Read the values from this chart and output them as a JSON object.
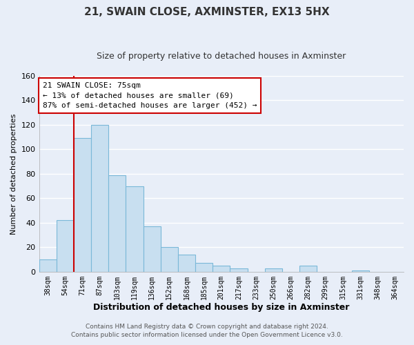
{
  "title": "21, SWAIN CLOSE, AXMINSTER, EX13 5HX",
  "subtitle": "Size of property relative to detached houses in Axminster",
  "xlabel": "Distribution of detached houses by size in Axminster",
  "ylabel": "Number of detached properties",
  "bins": [
    "38sqm",
    "54sqm",
    "71sqm",
    "87sqm",
    "103sqm",
    "119sqm",
    "136sqm",
    "152sqm",
    "168sqm",
    "185sqm",
    "201sqm",
    "217sqm",
    "233sqm",
    "250sqm",
    "266sqm",
    "282sqm",
    "299sqm",
    "315sqm",
    "331sqm",
    "348sqm",
    "364sqm"
  ],
  "values": [
    10,
    42,
    109,
    120,
    79,
    70,
    37,
    20,
    14,
    7,
    5,
    3,
    0,
    3,
    0,
    5,
    0,
    0,
    1,
    0,
    0
  ],
  "bar_color": "#c8dff0",
  "bar_edge_color": "#7ab8d8",
  "highlight_line_color": "#cc0000",
  "highlight_bin_index": 2,
  "ylim": [
    0,
    160
  ],
  "yticks": [
    0,
    20,
    40,
    60,
    80,
    100,
    120,
    140,
    160
  ],
  "annotation_title": "21 SWAIN CLOSE: 75sqm",
  "annotation_line1": "← 13% of detached houses are smaller (69)",
  "annotation_line2": "87% of semi-detached houses are larger (452) →",
  "annotation_box_color": "#ffffff",
  "annotation_box_edge": "#cc0000",
  "footer1": "Contains HM Land Registry data © Crown copyright and database right 2024.",
  "footer2": "Contains public sector information licensed under the Open Government Licence v3.0.",
  "background_color": "#e8eef8",
  "plot_bg_color": "#e8eef8",
  "grid_color": "#ffffff",
  "title_color": "#333333",
  "subtitle_color": "#333333"
}
